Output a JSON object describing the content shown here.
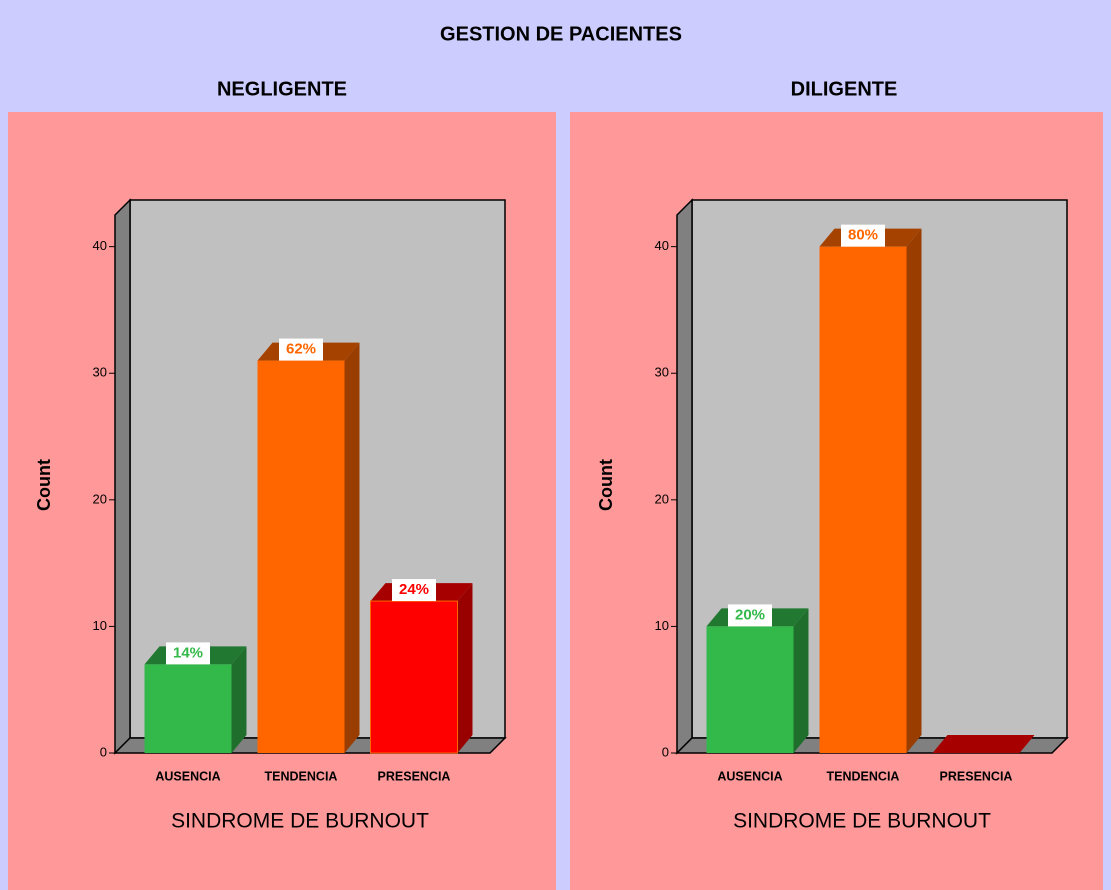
{
  "title": "GESTION DE PACIENTES",
  "chart_data": [
    {
      "type": "bar",
      "title": "NEGLIGENTE",
      "ylabel": "Count",
      "xlabel": "SINDROME DE BURNOUT",
      "categories": [
        "AUSENCIA",
        "TENDENCIA",
        "PRESENCIA"
      ],
      "values": [
        7,
        31,
        12
      ],
      "value_labels": [
        "14%",
        "62%",
        "24%"
      ],
      "colors": [
        "#33b84a",
        "#ff6600",
        "#ff0000"
      ],
      "ylim": [
        0,
        42.5
      ],
      "yticks": [
        0,
        10,
        20,
        30,
        40
      ]
    },
    {
      "type": "bar",
      "title": "DILIGENTE",
      "ylabel": "Count",
      "xlabel": "SINDROME DE BURNOUT",
      "categories": [
        "AUSENCIA",
        "TENDENCIA",
        "PRESENCIA"
      ],
      "values": [
        10,
        40,
        0
      ],
      "value_labels": [
        "20%",
        "80%",
        null
      ],
      "colors": [
        "#33b84a",
        "#ff6600",
        "#ff0000"
      ],
      "ylim": [
        0,
        42.5
      ],
      "yticks": [
        0,
        10,
        20,
        30,
        40
      ]
    }
  ]
}
